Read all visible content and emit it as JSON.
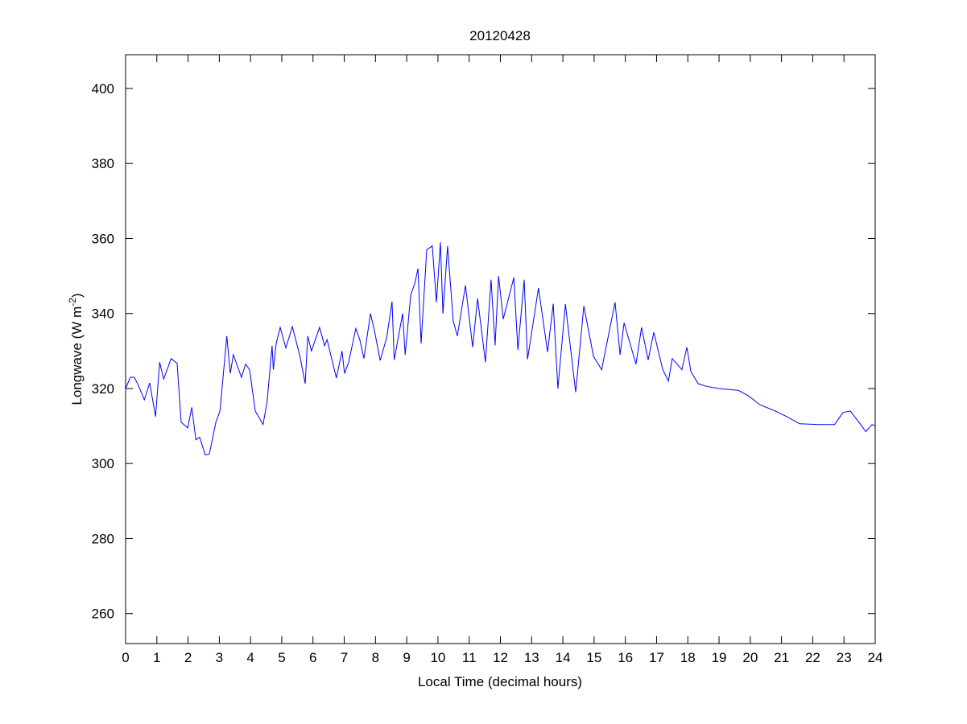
{
  "chart_data": {
    "type": "line",
    "title": "20120428",
    "xlabel": "Local Time (decimal hours)",
    "ylabel": "Longwave (W m",
    "ylabel_sup": "-2",
    "ylabel_close": ")",
    "xlim": [
      0,
      24
    ],
    "ylim": [
      252,
      409
    ],
    "xticks": [
      0,
      1,
      2,
      3,
      4,
      5,
      6,
      7,
      8,
      9,
      10,
      11,
      12,
      13,
      14,
      15,
      16,
      17,
      18,
      19,
      20,
      21,
      22,
      23,
      24
    ],
    "yticks": [
      260,
      280,
      300,
      320,
      340,
      360,
      380,
      400
    ],
    "grid": false,
    "line_color": "#0000ff",
    "series": [
      {
        "name": "Longwave",
        "x": [
          0,
          0.15,
          0.28,
          0.4,
          0.6,
          0.77,
          0.96,
          1.09,
          1.22,
          1.46,
          1.65,
          1.78,
          1.99,
          2.12,
          2.25,
          2.37,
          2.55,
          2.68,
          2.89,
          3.02,
          3.24,
          3.35,
          3.45,
          3.71,
          3.84,
          3.97,
          4.15,
          4.4,
          4.53,
          4.69,
          4.73,
          4.82,
          4.95,
          5.13,
          5.34,
          5.57,
          5.75,
          5.83,
          5.95,
          6.21,
          6.37,
          6.45,
          6.75,
          6.93,
          7.01,
          7.14,
          7.37,
          7.5,
          7.63,
          7.84,
          7.97,
          8.15,
          8.36,
          8.53,
          8.6,
          8.87,
          8.95,
          9.13,
          9.26,
          9.36,
          9.46,
          9.64,
          9.82,
          9.95,
          10.08,
          10.16,
          10.31,
          10.49,
          10.62,
          10.88,
          11.11,
          11.27,
          11.52,
          11.7,
          11.83,
          11.94,
          12.09,
          12.43,
          12.56,
          12.76,
          12.87,
          13.22,
          13.51,
          13.69,
          13.84,
          14.08,
          14.41,
          14.67,
          14.98,
          15.24,
          15.67,
          15.83,
          15.96,
          16.34,
          16.52,
          16.73,
          16.91,
          17.2,
          17.38,
          17.5,
          17.81,
          17.97,
          18.1,
          18.33,
          18.59,
          19,
          19.62,
          19.95,
          20.3,
          20.8,
          21.17,
          21.58,
          22.2,
          22.7,
          22.97,
          23.2,
          23.48,
          23.7,
          23.9,
          24
        ],
        "y": [
          320,
          323,
          323,
          321,
          317,
          321.5,
          312.5,
          327,
          322.5,
          328,
          326.7,
          311,
          309.5,
          315,
          306.3,
          307,
          302.3,
          302.5,
          311,
          314,
          334,
          324,
          329,
          323,
          326.5,
          325,
          314,
          310.4,
          316.4,
          331.4,
          325,
          332,
          336.3,
          330.8,
          336.5,
          329,
          321.3,
          334,
          330,
          336.3,
          331.4,
          333,
          322.8,
          330,
          324,
          327,
          336,
          333,
          328,
          340,
          335.3,
          327.5,
          333.6,
          343.2,
          327.6,
          340,
          329,
          345,
          348,
          352,
          332,
          357,
          358,
          343,
          359,
          340,
          358,
          338,
          334,
          347.5,
          331,
          344,
          327,
          349,
          331.5,
          350,
          338.5,
          349.6,
          330.3,
          349,
          327.8,
          346.8,
          329.7,
          342.6,
          320,
          342.5,
          319,
          342,
          328.6,
          325,
          343,
          329,
          337.5,
          326.5,
          336.3,
          327.6,
          335,
          325,
          322,
          328,
          325,
          331,
          324.5,
          321.3,
          320.6,
          320,
          319.5,
          318,
          315.7,
          314,
          312.5,
          310.6,
          310.4,
          310.4,
          313.6,
          314,
          311,
          308.5,
          310.4,
          310
        ]
      }
    ]
  }
}
